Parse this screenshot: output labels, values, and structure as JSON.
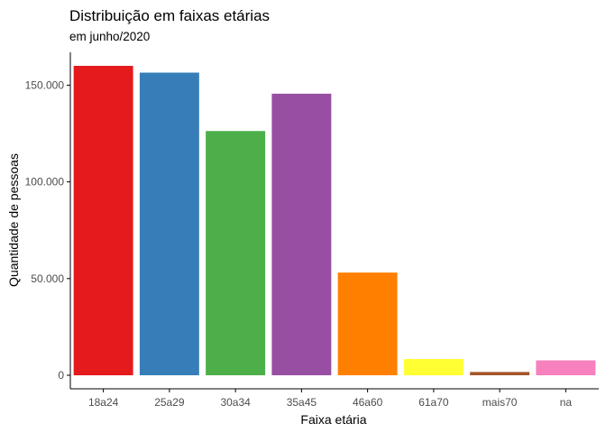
{
  "chart_data": {
    "type": "bar",
    "title": "Distribuição em faixas etárias",
    "subtitle": "em junho/2020",
    "xlabel": "Faixa etária",
    "ylabel": "Quantidade de pessoas",
    "categories": [
      "18a24",
      "25a29",
      "30a34",
      "35a45",
      "46a60",
      "61a70",
      "mais70",
      "na"
    ],
    "values": [
      160000,
      156500,
      126300,
      145600,
      53100,
      8400,
      1700,
      7700
    ],
    "colors": [
      "#E41A1C",
      "#377EB8",
      "#4DAF4A",
      "#984EA3",
      "#FF7F00",
      "#FFFF33",
      "#A65628",
      "#F781BF"
    ],
    "ylim": [
      -7000,
      167000
    ],
    "yticks": [
      0,
      50000,
      100000,
      150000
    ],
    "ytick_labels": [
      "0",
      "50.000",
      "100.000",
      "150.000"
    ],
    "grid": false,
    "legend": "none"
  }
}
